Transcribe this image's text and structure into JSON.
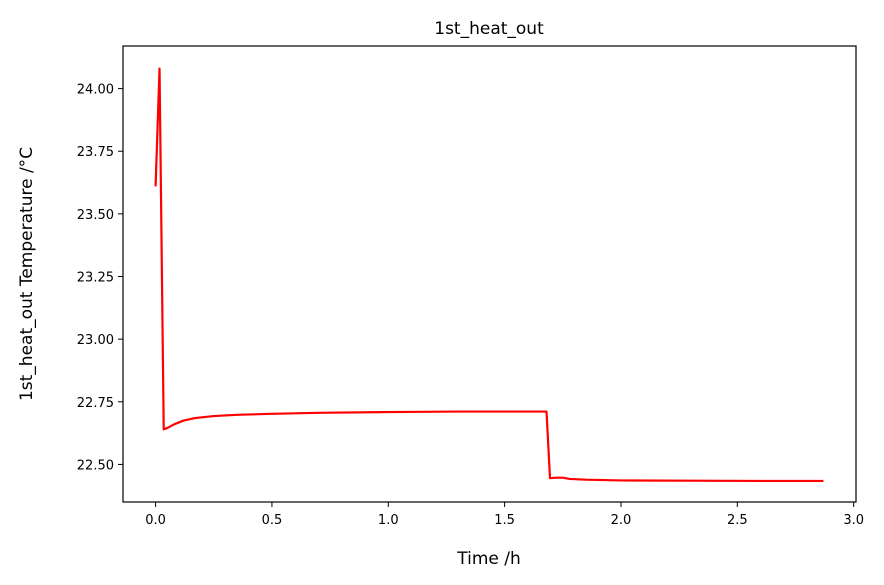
{
  "chart_data": {
    "type": "line",
    "title": "1st_heat_out",
    "xlabel": "Time /h",
    "ylabel": "1st_heat_out Temperature /°C",
    "xlim": [
      -0.14,
      3.01
    ],
    "ylim": [
      22.35,
      24.17
    ],
    "xticks": [
      0.0,
      0.5,
      1.0,
      1.5,
      2.0,
      2.5,
      3.0
    ],
    "xtick_labels": [
      "0.0",
      "0.5",
      "1.0",
      "1.5",
      "2.0",
      "2.5",
      "3.0"
    ],
    "yticks": [
      22.5,
      22.75,
      23.0,
      23.25,
      23.5,
      23.75,
      24.0
    ],
    "ytick_labels": [
      "22.50",
      "22.75",
      "23.00",
      "23.25",
      "23.50",
      "23.75",
      "24.00"
    ],
    "grid": false,
    "series": [
      {
        "color": "#ff0000",
        "x": [
          0.0,
          0.017,
          0.035,
          0.05,
          0.08,
          0.12,
          0.17,
          0.25,
          0.35,
          0.5,
          0.7,
          1.0,
          1.3,
          1.6,
          1.68,
          1.695,
          1.72,
          1.75,
          1.78,
          1.85,
          2.0,
          2.3,
          2.6,
          2.87
        ],
        "y": [
          23.61,
          24.08,
          22.64,
          22.645,
          22.66,
          22.675,
          22.685,
          22.693,
          22.698,
          22.702,
          22.706,
          22.709,
          22.711,
          22.711,
          22.711,
          22.445,
          22.447,
          22.447,
          22.442,
          22.439,
          22.436,
          22.435,
          22.434,
          22.434
        ]
      }
    ]
  }
}
